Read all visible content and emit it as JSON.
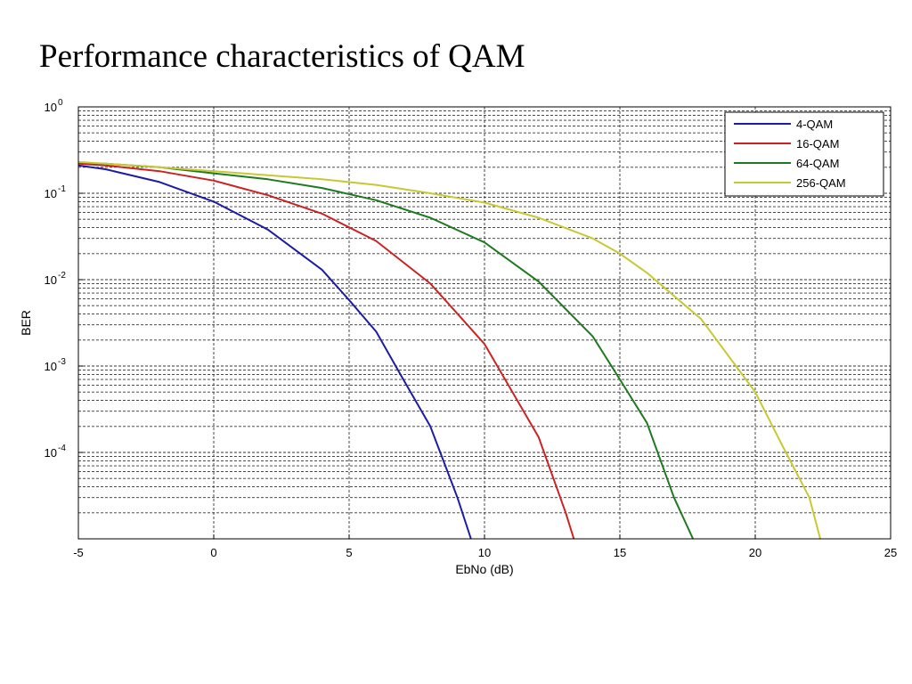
{
  "slide": {
    "title": "Performance characteristics of QAM"
  },
  "chart_data": {
    "type": "line",
    "title": "",
    "xlabel": "EbNo (dB)",
    "ylabel": "BER",
    "xlim": [
      -5,
      25
    ],
    "ylim": [
      1e-05,
      1
    ],
    "y_scale": "log",
    "x_ticks": [
      "-5",
      "0",
      "5",
      "10",
      "15",
      "20",
      "25"
    ],
    "y_ticks": [
      {
        "base": "10",
        "exp": "0"
      },
      {
        "base": "10",
        "exp": "-1"
      },
      {
        "base": "10",
        "exp": "-2"
      },
      {
        "base": "10",
        "exp": "-3"
      },
      {
        "base": "10",
        "exp": "-4"
      }
    ],
    "grid": true,
    "legend_position": "top-right",
    "series": [
      {
        "name": "4-QAM",
        "color": "#1c1ca6",
        "points": [
          [
            -5,
            0.21
          ],
          [
            -4,
            0.19
          ],
          [
            -2,
            0.135
          ],
          [
            0,
            0.08
          ],
          [
            2,
            0.038
          ],
          [
            4,
            0.013
          ],
          [
            5,
            0.0058
          ],
          [
            6,
            0.0025
          ],
          [
            7,
            0.0007
          ],
          [
            8,
            0.0002
          ],
          [
            9,
            3e-05
          ],
          [
            9.5,
            1e-05
          ]
        ]
      },
      {
        "name": "16-QAM",
        "color": "#cc2222",
        "points": [
          [
            -5,
            0.22
          ],
          [
            -4,
            0.21
          ],
          [
            -2,
            0.18
          ],
          [
            0,
            0.14
          ],
          [
            2,
            0.095
          ],
          [
            4,
            0.058
          ],
          [
            6,
            0.028
          ],
          [
            8,
            0.009
          ],
          [
            10,
            0.0018
          ],
          [
            12,
            0.00015
          ],
          [
            13,
            2e-05
          ],
          [
            13.3,
            1e-05
          ]
        ]
      },
      {
        "name": "64-QAM",
        "color": "#1e7a1e",
        "points": [
          [
            -5,
            0.225
          ],
          [
            -4,
            0.22
          ],
          [
            -2,
            0.2
          ],
          [
            0,
            0.17
          ],
          [
            2,
            0.145
          ],
          [
            4,
            0.115
          ],
          [
            6,
            0.083
          ],
          [
            8,
            0.052
          ],
          [
            10,
            0.027
          ],
          [
            12,
            0.0095
          ],
          [
            14,
            0.0022
          ],
          [
            15,
            0.0007
          ],
          [
            16,
            0.00022
          ],
          [
            17,
            3e-05
          ],
          [
            17.7,
            1e-05
          ]
        ]
      },
      {
        "name": "256-QAM",
        "color": "#c8c832",
        "points": [
          [
            -5,
            0.23
          ],
          [
            -4,
            0.22
          ],
          [
            -2,
            0.2
          ],
          [
            0,
            0.18
          ],
          [
            2,
            0.162
          ],
          [
            4,
            0.145
          ],
          [
            6,
            0.125
          ],
          [
            8,
            0.1
          ],
          [
            10,
            0.078
          ],
          [
            12,
            0.052
          ],
          [
            14,
            0.03
          ],
          [
            15,
            0.02
          ],
          [
            16,
            0.012
          ],
          [
            18,
            0.0035
          ],
          [
            20,
            0.0005
          ],
          [
            21,
            0.00012
          ],
          [
            22,
            3e-05
          ],
          [
            22.4,
            1e-05
          ]
        ]
      }
    ]
  }
}
